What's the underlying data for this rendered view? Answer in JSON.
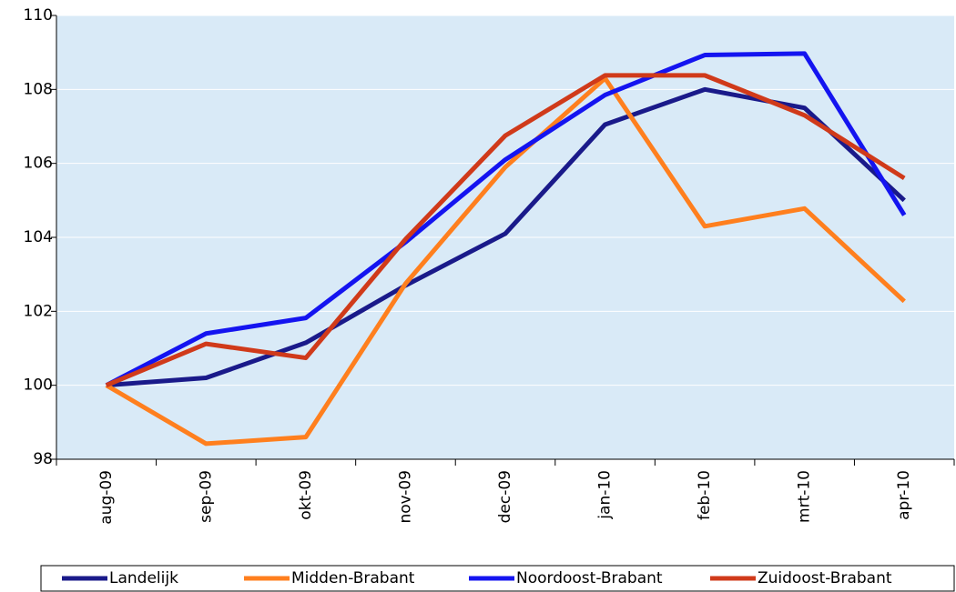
{
  "chart_data": {
    "type": "line",
    "categories": [
      "aug-09",
      "sep-09",
      "okt-09",
      "nov-09",
      "dec-09",
      "jan-10",
      "feb-10",
      "mrt-10",
      "apr-10"
    ],
    "series": [
      {
        "name": "Landelijk",
        "color": "#1a1a8a",
        "values": [
          100,
          100.2,
          101.15,
          102.7,
          104.1,
          107.05,
          108.0,
          107.5,
          105.0
        ]
      },
      {
        "name": "Midden-Brabant",
        "color": "#ff7f1e",
        "values": [
          100,
          98.42,
          98.6,
          102.75,
          105.9,
          108.3,
          104.3,
          104.78,
          102.27
        ]
      },
      {
        "name": "Noordoost-Brabant",
        "color": "#1414f0",
        "values": [
          100,
          101.4,
          101.82,
          103.87,
          106.1,
          107.85,
          108.93,
          108.97,
          104.6
        ]
      },
      {
        "name": "Zuidoost-Brabant",
        "color": "#d03a1a",
        "values": [
          100,
          101.12,
          100.74,
          103.95,
          106.75,
          108.38,
          108.38,
          107.3,
          105.6
        ]
      }
    ],
    "ylim": [
      98,
      110
    ],
    "yticks": [
      98,
      100,
      102,
      104,
      106,
      108,
      110
    ],
    "grid": true,
    "legend": "bottom"
  }
}
